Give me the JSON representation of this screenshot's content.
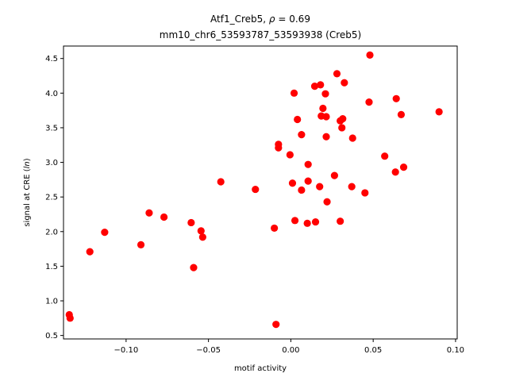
{
  "chart_data": {
    "type": "scatter",
    "title_line1_name": "Atf1_Creb5, ",
    "title_line1_rho_symbol": "ρ",
    "title_line1_rho_value": " = 0.69",
    "title_line2": "mm10_chr6_53593787_53593938 (Creb5)",
    "xlabel": "motif activity",
    "ylabel_prefix": "signal at CRE (",
    "ylabel_italic": "ln",
    "ylabel_suffix": ")",
    "xlim": [
      -0.138,
      0.101
    ],
    "ylim": [
      0.45,
      4.68
    ],
    "xticks": [
      -0.1,
      -0.05,
      0.0,
      0.05,
      0.1
    ],
    "xtick_labels": [
      "−0.10",
      "−0.05",
      "0.00",
      "0.05",
      "0.10"
    ],
    "yticks": [
      0.5,
      1.0,
      1.5,
      2.0,
      2.5,
      3.0,
      3.5,
      4.0,
      4.5
    ],
    "ytick_labels": [
      "0.5",
      "1.0",
      "1.5",
      "2.0",
      "2.5",
      "3.0",
      "3.5",
      "4.0",
      "4.5"
    ],
    "grid": false,
    "legend": "none",
    "point_color": "#ff0000",
    "points": [
      {
        "x": -0.1345,
        "y": 0.8
      },
      {
        "x": -0.134,
        "y": 0.75
      },
      {
        "x": -0.122,
        "y": 1.71
      },
      {
        "x": -0.113,
        "y": 1.99
      },
      {
        "x": -0.091,
        "y": 1.81
      },
      {
        "x": -0.086,
        "y": 2.27
      },
      {
        "x": -0.077,
        "y": 2.21
      },
      {
        "x": -0.0605,
        "y": 2.13
      },
      {
        "x": -0.059,
        "y": 1.48
      },
      {
        "x": -0.0545,
        "y": 2.01
      },
      {
        "x": -0.0535,
        "y": 1.92
      },
      {
        "x": -0.0425,
        "y": 2.72
      },
      {
        "x": -0.0215,
        "y": 2.61
      },
      {
        "x": -0.01,
        "y": 2.05
      },
      {
        "x": -0.009,
        "y": 0.66
      },
      {
        "x": -0.0075,
        "y": 3.26
      },
      {
        "x": -0.0075,
        "y": 3.21
      },
      {
        "x": -0.0005,
        "y": 3.11
      },
      {
        "x": 0.001,
        "y": 2.7
      },
      {
        "x": 0.002,
        "y": 4.0
      },
      {
        "x": 0.0025,
        "y": 2.16
      },
      {
        "x": 0.004,
        "y": 3.62
      },
      {
        "x": 0.0065,
        "y": 2.6
      },
      {
        "x": 0.0065,
        "y": 3.4
      },
      {
        "x": 0.01,
        "y": 2.12
      },
      {
        "x": 0.0105,
        "y": 2.73
      },
      {
        "x": 0.0105,
        "y": 2.97
      },
      {
        "x": 0.0145,
        "y": 4.1
      },
      {
        "x": 0.015,
        "y": 2.14
      },
      {
        "x": 0.0175,
        "y": 2.65
      },
      {
        "x": 0.018,
        "y": 4.12
      },
      {
        "x": 0.0185,
        "y": 3.67
      },
      {
        "x": 0.0195,
        "y": 3.78
      },
      {
        "x": 0.021,
        "y": 3.99
      },
      {
        "x": 0.0215,
        "y": 3.66
      },
      {
        "x": 0.0215,
        "y": 3.37
      },
      {
        "x": 0.022,
        "y": 2.43
      },
      {
        "x": 0.0265,
        "y": 2.81
      },
      {
        "x": 0.028,
        "y": 4.28
      },
      {
        "x": 0.03,
        "y": 3.6
      },
      {
        "x": 0.03,
        "y": 2.15
      },
      {
        "x": 0.031,
        "y": 3.5
      },
      {
        "x": 0.0315,
        "y": 3.63
      },
      {
        "x": 0.0325,
        "y": 4.15
      },
      {
        "x": 0.037,
        "y": 2.65
      },
      {
        "x": 0.0375,
        "y": 3.35
      },
      {
        "x": 0.045,
        "y": 2.56
      },
      {
        "x": 0.0475,
        "y": 3.87
      },
      {
        "x": 0.048,
        "y": 4.55
      },
      {
        "x": 0.057,
        "y": 3.09
      },
      {
        "x": 0.0635,
        "y": 2.86
      },
      {
        "x": 0.064,
        "y": 3.92
      },
      {
        "x": 0.067,
        "y": 3.69
      },
      {
        "x": 0.0685,
        "y": 2.93
      },
      {
        "x": 0.09,
        "y": 3.73
      }
    ]
  }
}
